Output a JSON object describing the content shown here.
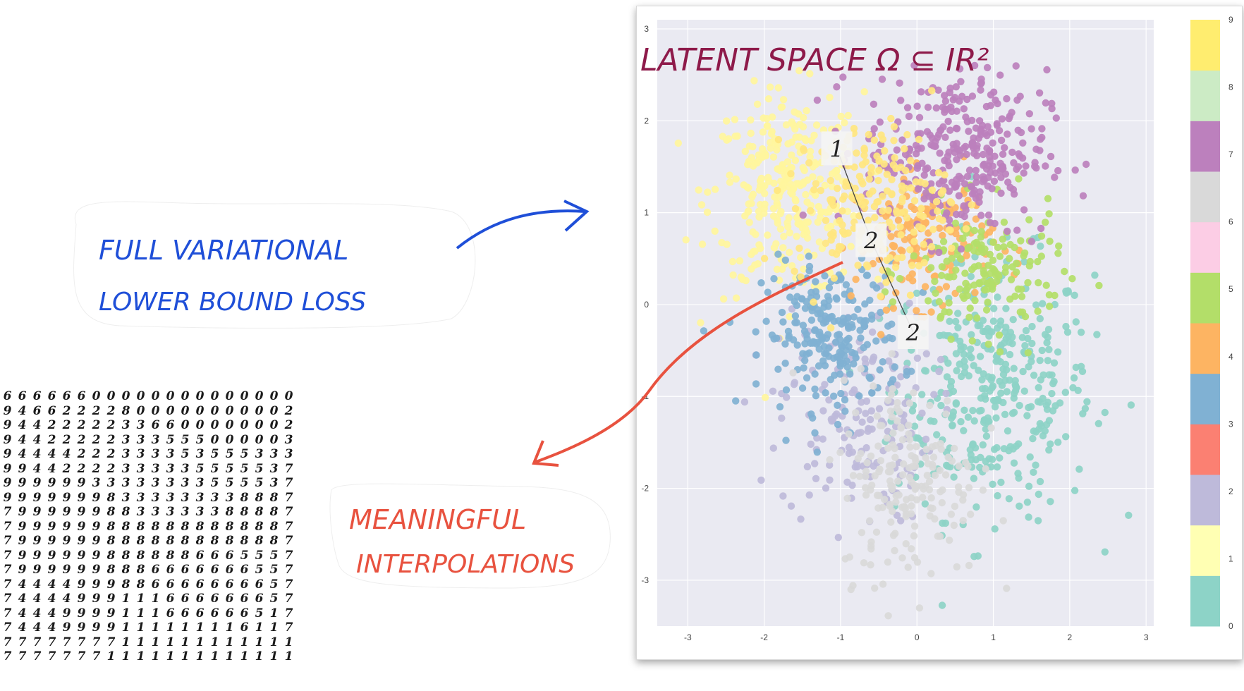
{
  "annotations": {
    "title": "LATENT SPACE Ω ⊆ IR²",
    "left_note_line1": "FULL VARIATIONAL",
    "left_note_line2": "LOWER BOUND LOSS",
    "bottom_note_line1": "MEANINGFUL",
    "bottom_note_line2": "INTERPOLATIONS",
    "point_labels": [
      "1",
      "2",
      "2"
    ]
  },
  "digit_grid": [
    "66666600000000000000",
    "94662222800000000002",
    "94422222336600000002",
    "94422222333555000003",
    "94444222333353555333",
    "99442222333335555537",
    "99999933333333555537",
    "99999998333333338887",
    "79999998833333388887",
    "79999998888888888887",
    "79999998888888888887",
    "79999998888886665557",
    "79999998886666666557",
    "74444999886666666657",
    "74444999111666666657",
    "74449999111666666517",
    "74449999111111116117",
    "77777777111111111111",
    "77777771111111111111"
  ],
  "chart_data": {
    "type": "scatter",
    "xlim": [
      -3.4,
      3.1
    ],
    "ylim": [
      -3.5,
      3.1
    ],
    "x_ticks": [
      -3,
      -2,
      -1,
      0,
      1,
      2,
      3
    ],
    "y_ticks": [
      -3,
      -2,
      -1,
      0,
      1,
      2,
      3
    ],
    "grid": true,
    "colorbar": {
      "ticks": [
        "0",
        "1",
        "2",
        "3",
        "4",
        "5",
        "6",
        "7",
        "8",
        "9"
      ],
      "colors": [
        "#8dd3c7",
        "#ffffb3",
        "#bebada",
        "#fb8072",
        "#80b1d3",
        "#fdb462",
        "#b3de69",
        "#fccde5",
        "#d9d9d9",
        "#bc80bd",
        "#ccebc5",
        "#ffed6f"
      ]
    },
    "series": [
      {
        "digit": "0",
        "color": "#8dd3c7",
        "center": [
          1.0,
          -0.9
        ],
        "spread": [
          0.65,
          0.7
        ],
        "count": 380
      },
      {
        "digit": "1",
        "color": "#fff59d",
        "center": [
          -1.7,
          1.2
        ],
        "spread": [
          0.5,
          0.55
        ],
        "count": 300
      },
      {
        "digit": "2",
        "color": "#bebada",
        "center": [
          -0.8,
          -1.2
        ],
        "spread": [
          0.5,
          0.6
        ],
        "count": 170
      },
      {
        "digit": "3",
        "color": "#80b1d3",
        "center": [
          -1.1,
          -0.35
        ],
        "spread": [
          0.45,
          0.4
        ],
        "count": 230
      },
      {
        "digit": "4",
        "color": "#fdb462",
        "center": [
          0.1,
          0.7
        ],
        "spread": [
          0.45,
          0.35
        ],
        "count": 150
      },
      {
        "digit": "5",
        "color": "#b3de69",
        "center": [
          0.9,
          0.35
        ],
        "spread": [
          0.5,
          0.35
        ],
        "count": 160
      },
      {
        "digit": "7",
        "color": "#bc80bd",
        "center": [
          0.5,
          1.65
        ],
        "spread": [
          0.6,
          0.45
        ],
        "count": 330
      },
      {
        "digit": "8",
        "color": "#d9d9d9",
        "center": [
          -0.1,
          -1.9
        ],
        "spread": [
          0.45,
          0.55
        ],
        "count": 190
      },
      {
        "digit": "9",
        "color": "#ffe680",
        "center": [
          -0.6,
          1.1
        ],
        "spread": [
          0.5,
          0.45
        ],
        "count": 200
      }
    ],
    "interpolation_path": [
      {
        "label": "1",
        "x": -1.05,
        "y": 1.7
      },
      {
        "label": "2",
        "x": -0.6,
        "y": 0.7
      },
      {
        "label": "2",
        "x": -0.05,
        "y": -0.3
      }
    ]
  }
}
